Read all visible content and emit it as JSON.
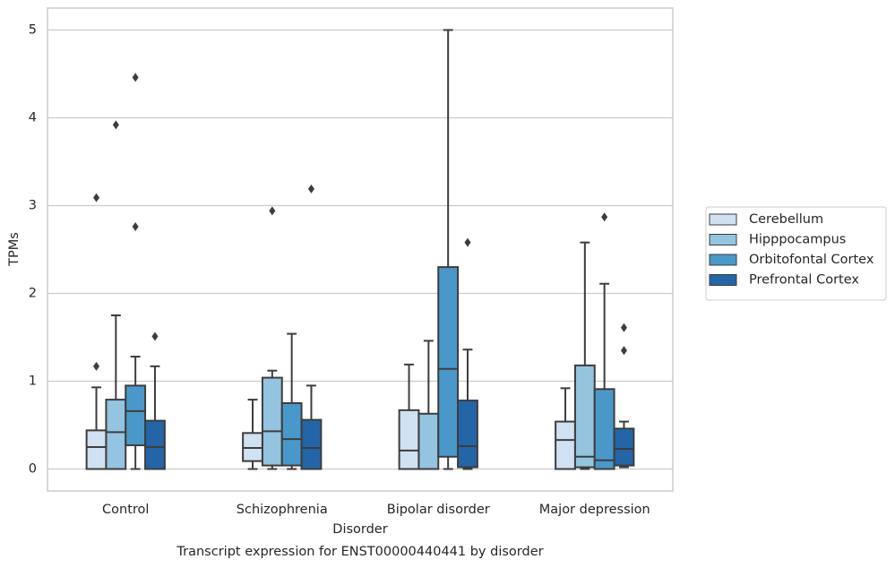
{
  "chart_data": {
    "type": "box",
    "title": "Transcript expression for ENST00000440441 by disorder",
    "x_label": "Disorder",
    "y_label": "TPMs",
    "categories": [
      "Control",
      "Schizophrenia",
      "Bipolar disorder",
      "Major depression"
    ],
    "ylim": [
      -0.25,
      5.25
    ],
    "yticks": [
      0,
      1,
      2,
      3,
      4,
      5
    ],
    "grid": true,
    "legend": "center right outside",
    "series": [
      {
        "name": "Cerebellum",
        "color": "#d0e1f2",
        "boxes": [
          {
            "low": 0,
            "q1": 0,
            "median": 0.25,
            "q3": 0.44,
            "high": 0.93,
            "outliers": [
              1.17,
              3.09
            ]
          },
          {
            "low": 0,
            "q1": 0.09,
            "median": 0.24,
            "q3": 0.41,
            "high": 0.79,
            "outliers": []
          },
          {
            "low": 0,
            "q1": 0,
            "median": 0.21,
            "q3": 0.67,
            "high": 1.19,
            "outliers": []
          },
          {
            "low": 0,
            "q1": 0,
            "median": 0.33,
            "q3": 0.54,
            "high": 0.92,
            "outliers": []
          }
        ]
      },
      {
        "name": "Hipppocampus",
        "color": "#94c4df",
        "boxes": [
          {
            "low": 0,
            "q1": 0,
            "median": 0.42,
            "q3": 0.79,
            "high": 1.75,
            "outliers": [
              3.92
            ]
          },
          {
            "low": 0,
            "q1": 0.04,
            "median": 0.43,
            "q3": 1.04,
            "high": 1.12,
            "outliers": [
              2.94
            ]
          },
          {
            "low": 0,
            "q1": 0,
            "median": 0,
            "q3": 0.63,
            "high": 1.46,
            "outliers": []
          },
          {
            "low": 0,
            "q1": 0.02,
            "median": 0.14,
            "q3": 1.18,
            "high": 2.58,
            "outliers": []
          }
        ]
      },
      {
        "name": "Orbitofontal Cortex",
        "color": "#4a98c9",
        "boxes": [
          {
            "low": 0,
            "q1": 0.27,
            "median": 0.66,
            "q3": 0.95,
            "high": 1.28,
            "outliers": [
              4.46,
              2.76
            ]
          },
          {
            "low": 0,
            "q1": 0.04,
            "median": 0.34,
            "q3": 0.75,
            "high": 1.54,
            "outliers": []
          },
          {
            "low": 0,
            "q1": 0.14,
            "median": 1.14,
            "q3": 2.3,
            "high": 5.0,
            "outliers": []
          },
          {
            "low": 0,
            "q1": 0,
            "median": 0.1,
            "q3": 0.91,
            "high": 2.11,
            "outliers": [
              2.87
            ]
          }
        ]
      },
      {
        "name": "Prefrontal Cortex",
        "color": "#2365a6",
        "boxes": [
          {
            "low": 0,
            "q1": 0,
            "median": 0.25,
            "q3": 0.55,
            "high": 1.17,
            "outliers": [
              1.51
            ]
          },
          {
            "low": 0,
            "q1": 0,
            "median": 0.24,
            "q3": 0.56,
            "high": 0.95,
            "outliers": [
              3.19
            ]
          },
          {
            "low": 0,
            "q1": 0.02,
            "median": 0.26,
            "q3": 0.78,
            "high": 1.36,
            "outliers": [
              2.58
            ]
          },
          {
            "low": 0.02,
            "q1": 0.04,
            "median": 0.23,
            "q3": 0.46,
            "high": 0.54,
            "outliers": [
              1.61,
              1.35
            ]
          }
        ]
      }
    ]
  }
}
